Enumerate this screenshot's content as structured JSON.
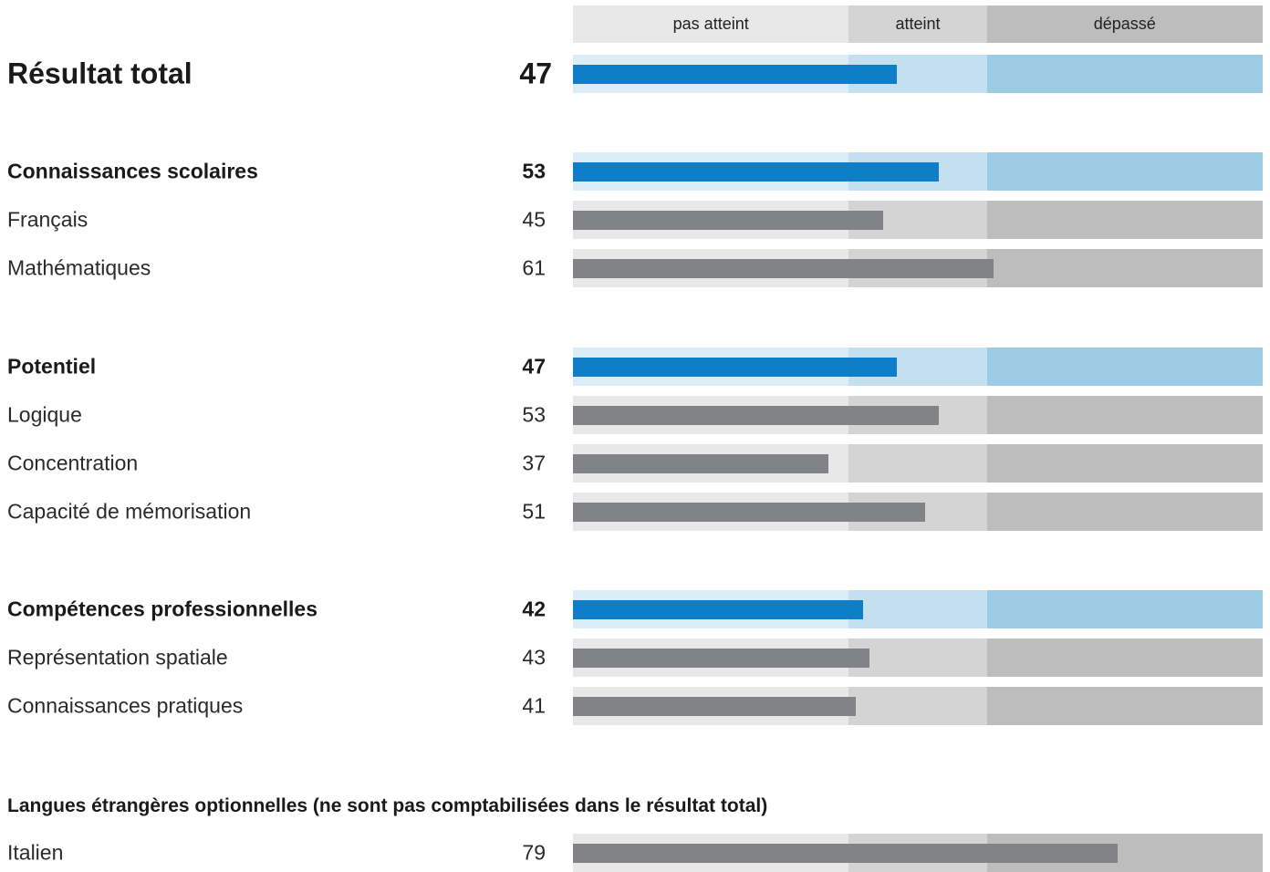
{
  "scale": {
    "bands": [
      {
        "label": "pas atteint",
        "from": 0,
        "to": 40
      },
      {
        "label": "atteint",
        "from": 40,
        "to": 60
      },
      {
        "label": "dépassé",
        "from": 60,
        "to": 100
      }
    ]
  },
  "colors": {
    "header": [
      "#e8e8e8",
      "#d4d4d4",
      "#bdbdbd"
    ],
    "grey_band": [
      "#e8e8e8",
      "#d4d4d4",
      "#bdbdbd"
    ],
    "blue_band": [
      "#ddedf8",
      "#c3dff0",
      "#9dcbe4"
    ],
    "bar_main": "#0f7dc7",
    "bar_sub": "#828386"
  },
  "optional_languages_title": "Langues étrangères optionnelles (ne sont pas comptabilisées dans le résultat total)",
  "chart_data": {
    "type": "bar",
    "orientation": "horizontal",
    "xlim": [
      0,
      100
    ],
    "rows": [
      {
        "label": "Résultat total",
        "value": 47,
        "level": "total"
      },
      {
        "label": "Connaissances scolaires",
        "value": 53,
        "level": "section"
      },
      {
        "label": "Français",
        "value": 45,
        "level": "item"
      },
      {
        "label": "Mathématiques",
        "value": 61,
        "level": "item"
      },
      {
        "label": "Potentiel",
        "value": 47,
        "level": "section"
      },
      {
        "label": "Logique",
        "value": 53,
        "level": "item"
      },
      {
        "label": "Concentration",
        "value": 37,
        "level": "item"
      },
      {
        "label": "Capacité de mémorisation",
        "value": 51,
        "level": "item"
      },
      {
        "label": "Compétences professionnelles",
        "value": 42,
        "level": "section"
      },
      {
        "label": "Représentation spatiale",
        "value": 43,
        "level": "item"
      },
      {
        "label": "Connaissances pratiques",
        "value": 41,
        "level": "item"
      },
      {
        "label": "Italien",
        "value": 79,
        "level": "item"
      }
    ]
  }
}
